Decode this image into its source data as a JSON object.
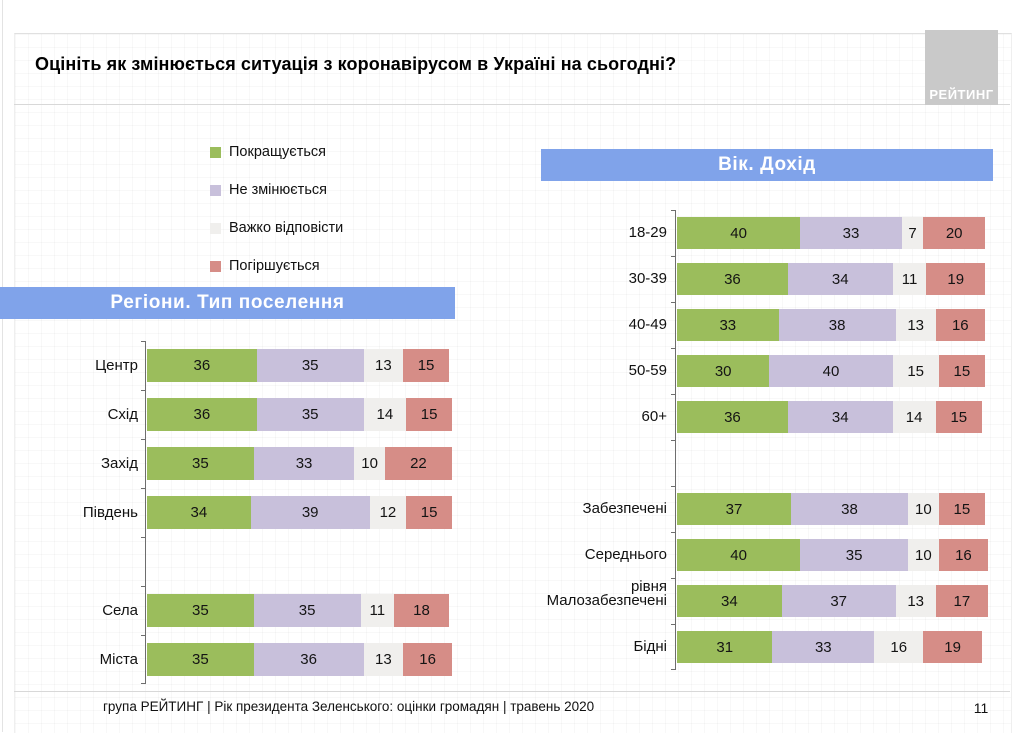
{
  "title": "Оцініть як змінюється ситуація з коронавірусом в Україні на сьогодні?",
  "logo": {
    "text": "РЕЙТИНГ"
  },
  "legend": {
    "items": [
      {
        "label": "Покращується",
        "color": "#9bbd5c"
      },
      {
        "label": "Не змінюється",
        "color": "#c8c0db"
      },
      {
        "label": "Важко відповісти",
        "color": "#f0efed"
      },
      {
        "label": "Погіршується",
        "color": "#d68d87"
      }
    ]
  },
  "colors": {
    "banner_blue": "#80a3ea",
    "axis_gray": "#6e6e6e",
    "logo_gray": "#c9c9c9",
    "better_green": "#9bbd5c",
    "same_lavender": "#c8c0db",
    "hard_gray": "#f0efed",
    "worse_salmon": "#d68d87"
  },
  "chart_data": [
    {
      "type": "bar",
      "orientation": "horizontal",
      "stacked": true,
      "unit": "percent",
      "xlim": [
        0,
        100
      ],
      "title": "Регіони. Тип поселення",
      "series_names": [
        "Покращується",
        "Не змінюється",
        "Важко відповісти",
        "Погіршується"
      ],
      "series_colors": [
        "#9bbd5c",
        "#c8c0db",
        "#f0efed",
        "#d68d87"
      ],
      "rows": [
        {
          "label": "Центр",
          "values": [
            36,
            35,
            13,
            15
          ]
        },
        {
          "label": "Схід",
          "values": [
            36,
            35,
            14,
            15
          ]
        },
        {
          "label": "Захід",
          "values": [
            35,
            33,
            10,
            22
          ]
        },
        {
          "label": "Південь",
          "values": [
            34,
            39,
            12,
            15
          ]
        },
        {
          "spacer": true
        },
        {
          "label": "Села",
          "values": [
            35,
            35,
            11,
            18
          ]
        },
        {
          "label": "Міста",
          "values": [
            35,
            36,
            13,
            16
          ]
        }
      ]
    },
    {
      "type": "bar",
      "orientation": "horizontal",
      "stacked": true,
      "unit": "percent",
      "xlim": [
        0,
        100
      ],
      "title": "Вік. Дохід",
      "series_names": [
        "Покращується",
        "Не змінюється",
        "Важко відповісти",
        "Погіршується"
      ],
      "series_colors": [
        "#9bbd5c",
        "#c8c0db",
        "#f0efed",
        "#d68d87"
      ],
      "rows": [
        {
          "label": "18-29",
          "values": [
            40,
            33,
            7,
            20
          ]
        },
        {
          "label": "30-39",
          "values": [
            36,
            34,
            11,
            19
          ]
        },
        {
          "label": "40-49",
          "values": [
            33,
            38,
            13,
            16
          ]
        },
        {
          "label": "50-59",
          "values": [
            30,
            40,
            15,
            15
          ]
        },
        {
          "label": "60+",
          "values": [
            36,
            34,
            14,
            15
          ]
        },
        {
          "spacer": true
        },
        {
          "label": "Забезпечені",
          "values": [
            37,
            38,
            10,
            15
          ]
        },
        {
          "label": "Середнього рівня",
          "values": [
            40,
            35,
            10,
            16
          ]
        },
        {
          "label": "Малозабезпечені",
          "values": [
            34,
            37,
            13,
            17
          ]
        },
        {
          "label": "Бідні",
          "values": [
            31,
            33,
            16,
            19
          ]
        }
      ]
    }
  ],
  "footer": {
    "text": "група РЕЙТИНГ |  Рік президента Зеленського: оцінки громадян | травень 2020",
    "page_number": "11"
  }
}
